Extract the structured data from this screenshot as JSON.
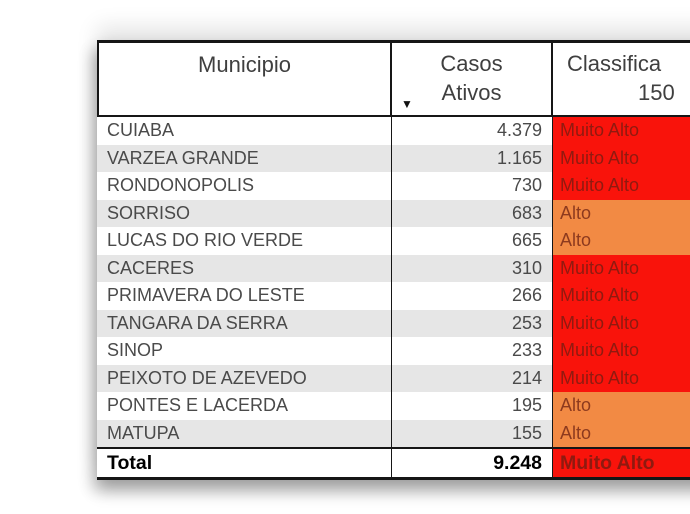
{
  "table": {
    "header": {
      "municipio": "Municipio",
      "casos_line1": "Casos",
      "casos_line2": "Ativos",
      "classifica_line1": "Classifica",
      "classifica_line2": "150",
      "sort_icon": "sort-descending-arrow"
    },
    "rows": [
      {
        "municipio": "CUIABA",
        "casos": "4.379",
        "classificacao": "Muito Alto"
      },
      {
        "municipio": "VARZEA GRANDE",
        "casos": "1.165",
        "classificacao": "Muito Alto"
      },
      {
        "municipio": "RONDONOPOLIS",
        "casos": "730",
        "classificacao": "Muito Alto"
      },
      {
        "municipio": "SORRISO",
        "casos": "683",
        "classificacao": "Alto"
      },
      {
        "municipio": "LUCAS DO RIO VERDE",
        "casos": "665",
        "classificacao": "Alto"
      },
      {
        "municipio": "CACERES",
        "casos": "310",
        "classificacao": "Muito Alto"
      },
      {
        "municipio": "PRIMAVERA DO LESTE",
        "casos": "266",
        "classificacao": "Muito Alto"
      },
      {
        "municipio": "TANGARA DA SERRA",
        "casos": "253",
        "classificacao": "Muito Alto"
      },
      {
        "municipio": "SINOP",
        "casos": "233",
        "classificacao": "Muito Alto"
      },
      {
        "municipio": "PEIXOTO DE AZEVEDO",
        "casos": "214",
        "classificacao": "Muito Alto"
      },
      {
        "municipio": "PONTES E LACERDA",
        "casos": "195",
        "classificacao": "Alto"
      },
      {
        "municipio": "MATUPA",
        "casos": "155",
        "classificacao": "Alto"
      }
    ],
    "total": {
      "label": "Total",
      "casos": "9.248",
      "classificacao": "Muito Alto"
    }
  },
  "colors": {
    "muito_alto_bg": "#f9130b",
    "muito_alto_text": "#8f1a10",
    "alto_bg": "#f28a44",
    "alto_text": "#8d3a1e",
    "zebra": "#e6e6e6",
    "border": "#161616"
  },
  "icons": {
    "sort_descending": "▼"
  }
}
